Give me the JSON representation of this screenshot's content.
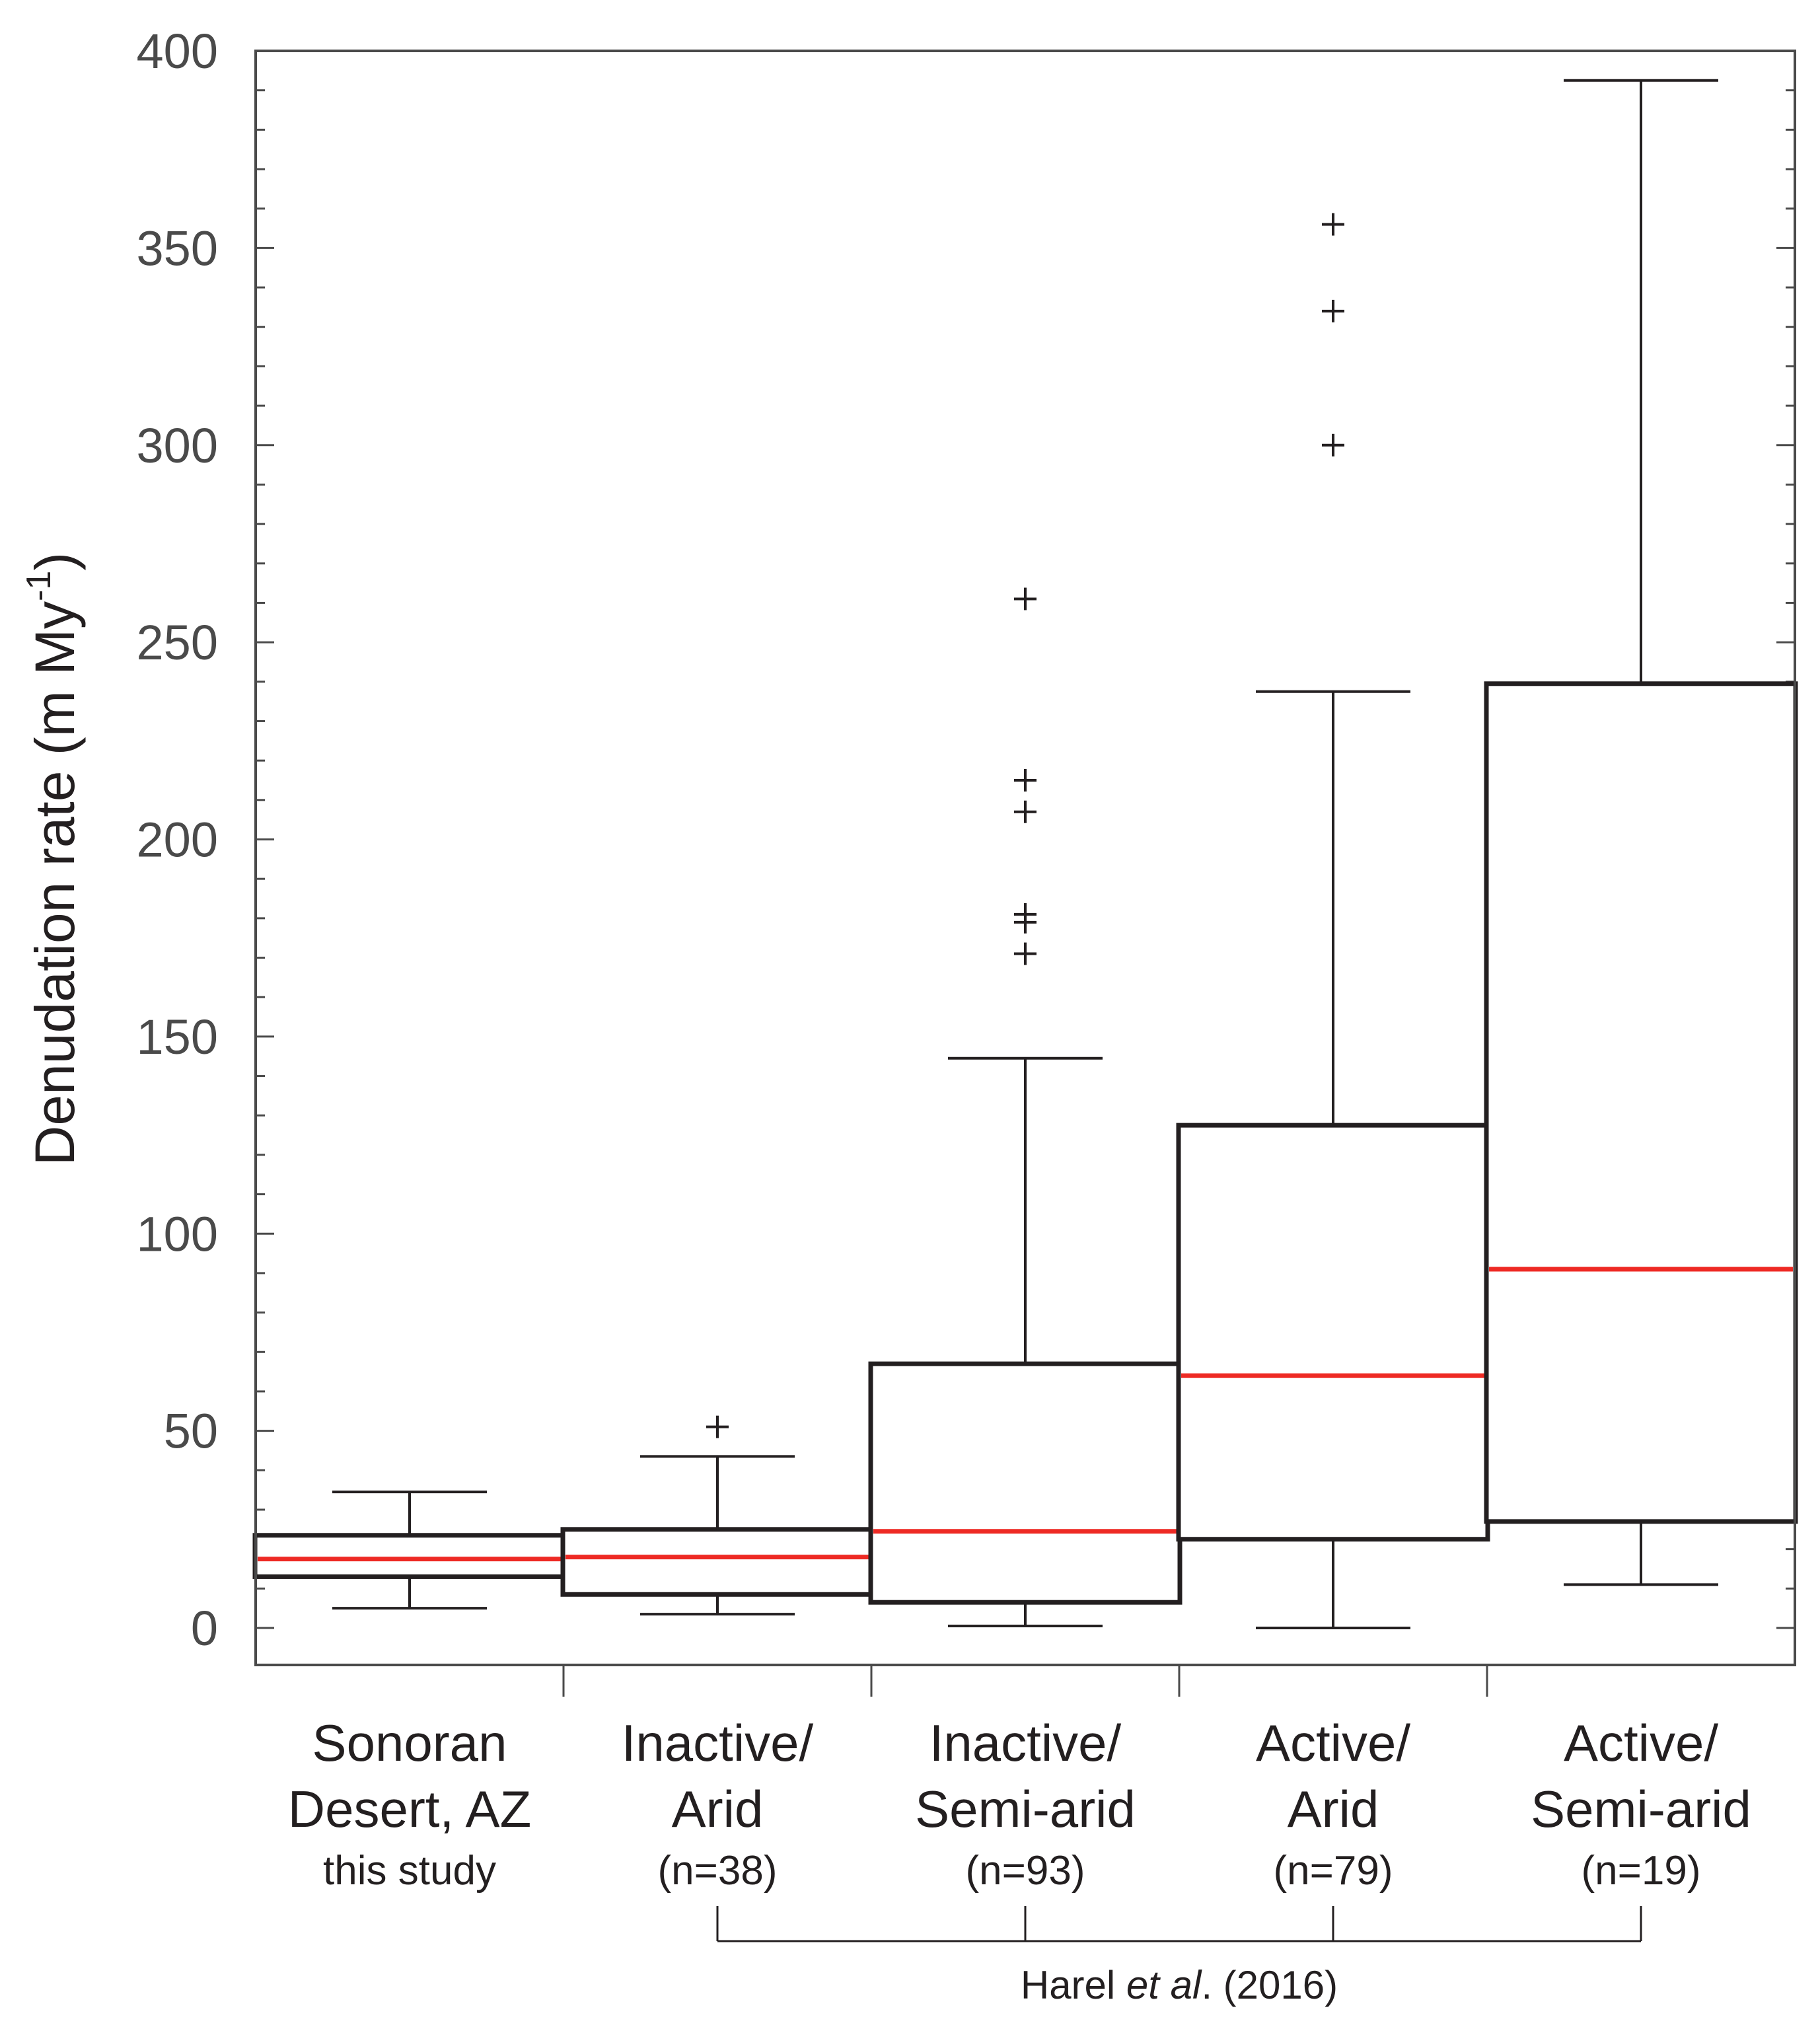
{
  "chart_data": {
    "type": "box",
    "ylabel": "Denudation rate (m My",
    "ylabel_superscript": "-1",
    "ylabel_close": ")",
    "ylim": [
      -10,
      400
    ],
    "yticks": [
      0,
      50,
      100,
      150,
      200,
      250,
      300,
      350,
      400
    ],
    "categories": [
      {
        "line1": "Sonoran",
        "line2": "Desert, AZ",
        "sub": "this study"
      },
      {
        "line1": "Inactive/",
        "line2": "Arid",
        "sub": "(n=38)"
      },
      {
        "line1": "Inactive/",
        "line2": "Semi-arid",
        "sub": "(n=93)"
      },
      {
        "line1": "Active/",
        "line2": "Arid",
        "sub": "(n=79)"
      },
      {
        "line1": "Active/",
        "line2": "Semi-arid",
        "sub": "(n=19)"
      }
    ],
    "boxes": [
      {
        "whisker_low": 5,
        "q1": 13,
        "median": 17.5,
        "q3": 23.5,
        "whisker_high": 34.5,
        "outliers": []
      },
      {
        "whisker_low": 3.5,
        "q1": 8.5,
        "median": 18,
        "q3": 25,
        "whisker_high": 43.5,
        "outliers": [
          51
        ]
      },
      {
        "whisker_low": 0.5,
        "q1": 6.5,
        "median": 24.5,
        "q3": 67,
        "whisker_high": 144.5,
        "outliers": [
          171,
          179,
          181,
          207,
          215,
          261
        ]
      },
      {
        "whisker_low": 0,
        "q1": 22.5,
        "median": 64,
        "q3": 127.5,
        "whisker_high": 237.5,
        "outliers": [
          300,
          334,
          356
        ]
      },
      {
        "whisker_low": 11,
        "q1": 27,
        "median": 91,
        "q3": 239.5,
        "whisker_high": 392.5,
        "outliers": []
      }
    ],
    "bracket": {
      "from_category": 1,
      "to_category": 4,
      "label_prefix": "Harel ",
      "label_italic": "et al",
      "label_suffix": ". (2016)"
    },
    "colors": {
      "box": "#231f20",
      "median": "#ee2a24",
      "frame": "#4a4a4a"
    }
  }
}
